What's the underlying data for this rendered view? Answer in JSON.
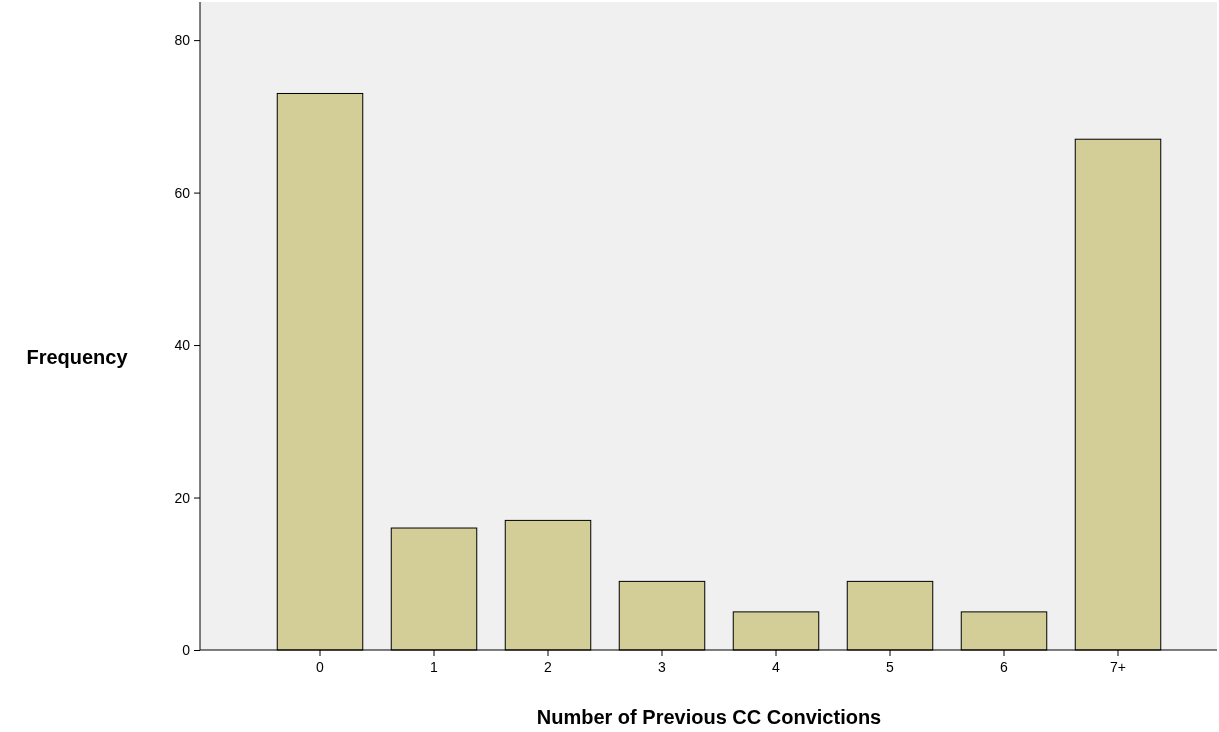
{
  "chart_data": {
    "type": "bar",
    "xlabel": "Number of Previous CC Convictions",
    "ylabel": "Frequency",
    "categories": [
      "0",
      "1",
      "2",
      "3",
      "4",
      "5",
      "6",
      "7+"
    ],
    "values": [
      73,
      16,
      17,
      9,
      5,
      9,
      5,
      67
    ],
    "color": "#d3ce97",
    "ylim": [
      0,
      85
    ],
    "yticks": [
      0,
      20,
      40,
      60,
      80
    ],
    "grid": false
  }
}
